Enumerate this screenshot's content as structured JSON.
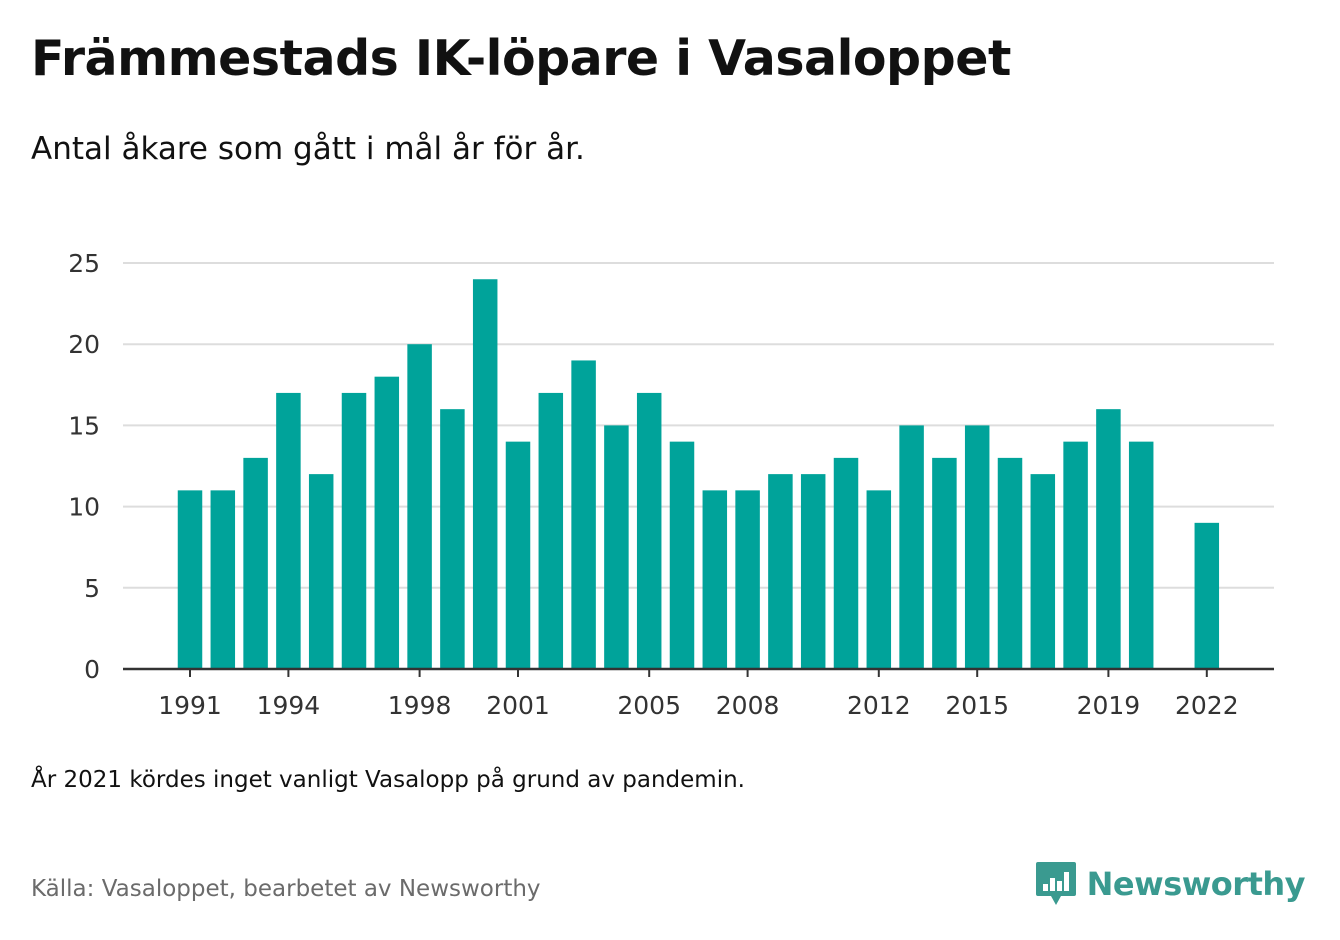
{
  "header": {
    "title": "Främmestads IK-löpare i Vasaloppet",
    "subtitle": "Antal åkare som gått i mål år för år."
  },
  "footer": {
    "note": "År 2021 kördes inget vanligt Vasalopp på grund av pandemin.",
    "source": "Källa: Vasaloppet, bearbetet av Newsworthy",
    "brand": "Newsworthy",
    "brand_icon": "newsworthy-logo-icon"
  },
  "colors": {
    "bar": "#00a39a",
    "grid": "#dddddd",
    "axis": "#333333",
    "brand": "#3a9a90"
  },
  "chart_data": {
    "type": "bar",
    "categories": [
      "1991",
      "1992",
      "1993",
      "1994",
      "1995",
      "1996",
      "1997",
      "1998",
      "1999",
      "2000",
      "2001",
      "2002",
      "2003",
      "2004",
      "2005",
      "2006",
      "2007",
      "2008",
      "2009",
      "2010",
      "2011",
      "2012",
      "2013",
      "2014",
      "2015",
      "2016",
      "2017",
      "2018",
      "2019",
      "2020",
      "2021",
      "2022"
    ],
    "values": [
      11,
      11,
      13,
      17,
      12,
      17,
      18,
      20,
      16,
      24,
      14,
      17,
      19,
      15,
      17,
      14,
      11,
      11,
      12,
      12,
      13,
      11,
      15,
      13,
      15,
      13,
      12,
      14,
      16,
      14,
      null,
      9
    ],
    "x_tick_labels": [
      "1991",
      "1994",
      "1998",
      "2001",
      "2005",
      "2008",
      "2012",
      "2015",
      "2019",
      "2022"
    ],
    "y_ticks": [
      0,
      5,
      10,
      15,
      20,
      25
    ],
    "ylim": [
      0,
      25
    ],
    "grid": true,
    "legend": "none"
  }
}
